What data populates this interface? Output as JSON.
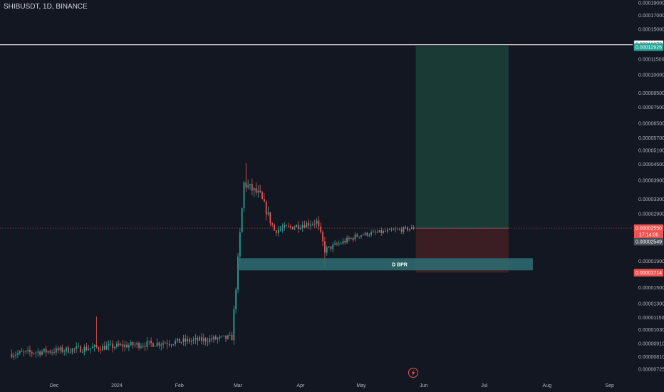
{
  "header": {
    "ticker": "SHIBUSDT, 1D, BINANCE"
  },
  "colors": {
    "background": "#131722",
    "up": "#26a69a",
    "down": "#ef5350",
    "text": "#b2b5be",
    "target_zone": "#1a3d37",
    "stop_zone": "#3d1e25",
    "bpr_zone": "#2e6e73",
    "alert_line": "#ffffff"
  },
  "chart_data": {
    "type": "candlestick",
    "scale": "log",
    "y_ticks": [
      "0.00019000",
      "0.00017000",
      "0.00015000",
      "0.00011500",
      "0.00010000",
      "0.00008500",
      "0.00007500",
      "0.00006500",
      "0.00005700",
      "0.00005100",
      "0.00004500",
      "0.00003900",
      "0.00003300",
      "0.00002900",
      "0.00001900",
      "0.00001500",
      "0.00001300",
      "0.00001150",
      "0.00001030",
      "0.00000910",
      "0.00000810",
      "0.00000725"
    ],
    "y_tick_values": [
      0.00019,
      0.00017,
      0.00015,
      0.000115,
      0.0001,
      8.5e-05,
      7.5e-05,
      6.5e-05,
      5.7e-05,
      5.1e-05,
      4.5e-05,
      3.9e-05,
      3.3e-05,
      2.9e-05,
      1.9e-05,
      1.5e-05,
      1.3e-05,
      1.15e-05,
      1.03e-05,
      9.1e-06,
      8.1e-06,
      7.25e-06
    ],
    "x_labels": [
      "Dec",
      "2024",
      "Feb",
      "Mar",
      "Apr",
      "May",
      "Jun",
      "Jul",
      "Aug",
      "Sep"
    ],
    "x_label_dates": [
      "2023-12-01",
      "2024-01-01",
      "2024-02-01",
      "2024-03-01",
      "2024-04-01",
      "2024-05-01",
      "2024-06-01",
      "2024-07-01",
      "2024-08-01",
      "2024-09-01"
    ],
    "price_tags": {
      "alert_upper": "0.00013078",
      "target": "0.00012926",
      "current": "0.00002550",
      "countdown": "17:14:06",
      "entry": "0.00002549",
      "zone_low": "0.00001714"
    },
    "price_tag_values": {
      "alert_upper": 0.00013078,
      "target": 0.00012926,
      "current": 2.55e-05,
      "entry": 2.549e-05,
      "zone_low": 1.714e-05
    },
    "zones": {
      "bpr": {
        "label": "D BPR",
        "top": 1.95e-05,
        "bottom": 1.75e-05,
        "start": "2024-03-01",
        "end": "2024-07-25"
      },
      "position": {
        "start": "2024-05-28",
        "end": "2024-07-13",
        "target": 0.00012926,
        "entry": 2.549e-05,
        "stop": 1.714e-05
      }
    },
    "segments": [
      {
        "start": "2023-11-10",
        "end": "2024-02-28",
        "p0": 8.3e-06,
        "p1": 9.6e-06,
        "vol": 0.06
      },
      {
        "start": "2024-02-28",
        "end": "2024-03-05",
        "p0": 9.6e-06,
        "p1": 3.8e-05,
        "vol": 0.08
      },
      {
        "start": "2024-03-05",
        "end": "2024-03-13",
        "p0": 3.8e-05,
        "p1": 3.4e-05,
        "vol": 0.09
      },
      {
        "start": "2024-03-13",
        "end": "2024-03-20",
        "p0": 3.4e-05,
        "p1": 2.5e-05,
        "vol": 0.08
      },
      {
        "start": "2024-03-20",
        "end": "2024-04-10",
        "p0": 2.5e-05,
        "p1": 2.7e-05,
        "vol": 0.06
      },
      {
        "start": "2024-04-10",
        "end": "2024-04-14",
        "p0": 2.7e-05,
        "p1": 2.1e-05,
        "vol": 0.07
      },
      {
        "start": "2024-04-14",
        "end": "2024-05-01",
        "p0": 2.1e-05,
        "p1": 2.4e-05,
        "vol": 0.05
      },
      {
        "start": "2024-05-01",
        "end": "2024-05-28",
        "p0": 2.4e-05,
        "p1": 2.55e-05,
        "vol": 0.04
      }
    ],
    "peaks": [
      {
        "date": "2023-12-22",
        "high": 1.16e-05
      },
      {
        "date": "2024-03-05",
        "high": 4.55e-05
      },
      {
        "date": "2024-04-13",
        "low": 1.81e-05
      }
    ]
  }
}
